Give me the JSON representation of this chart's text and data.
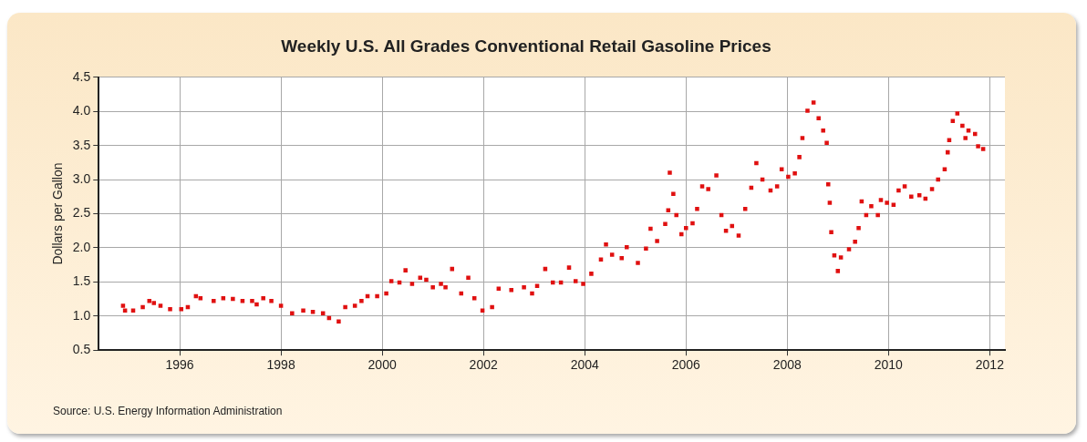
{
  "chart_data": {
    "type": "scatter",
    "title": "Weekly U.S. All Grades Conventional Retail Gasoline Prices",
    "ylabel": "Dollars per Gallon",
    "annotations": [
      "Source: U.S. Energy Information Administration"
    ],
    "series": [
      {
        "color": "#e01010",
        "x": [
          1994.88,
          1994.92,
          1995.08,
          1995.27,
          1995.4,
          1995.49,
          1995.62,
          1995.81,
          1996.03,
          1996.16,
          1996.32,
          1996.41,
          1996.67,
          1996.86,
          1997.05,
          1997.24,
          1997.43,
          1997.52,
          1997.65,
          1997.81,
          1998.0,
          1998.22,
          1998.44,
          1998.63,
          1998.83,
          1998.95,
          1999.14,
          1999.27,
          1999.46,
          1999.59,
          1999.71,
          1999.9,
          2000.08,
          2000.18,
          2000.34,
          2000.46,
          2000.59,
          2000.75,
          2000.87,
          2001.0,
          2001.16,
          2001.25,
          2001.38,
          2001.56,
          2001.7,
          2001.82,
          2001.98,
          2002.17,
          2002.3,
          2002.55,
          2002.8,
          2002.96,
          2003.06,
          2003.22,
          2003.37,
          2003.53,
          2003.69,
          2003.82,
          2003.97,
          2004.13,
          2004.32,
          2004.42,
          2004.54,
          2004.73,
          2004.83,
          2005.05,
          2005.21,
          2005.3,
          2005.43,
          2005.59,
          2005.65,
          2005.68,
          2005.75,
          2005.81,
          2005.91,
          2006.0,
          2006.13,
          2006.22,
          2006.32,
          2006.44,
          2006.6,
          2006.7,
          2006.79,
          2006.91,
          2007.04,
          2007.17,
          2007.29,
          2007.39,
          2007.51,
          2007.67,
          2007.8,
          2007.89,
          2008.02,
          2008.15,
          2008.24,
          2008.3,
          2008.4,
          2008.52,
          2008.62,
          2008.71,
          2008.78,
          2008.81,
          2008.84,
          2008.87,
          2008.93,
          2009.0,
          2009.06,
          2009.22,
          2009.34,
          2009.41,
          2009.47,
          2009.56,
          2009.66,
          2009.79,
          2009.85,
          2009.97,
          2010.1,
          2010.2,
          2010.32,
          2010.45,
          2010.61,
          2010.73,
          2010.86,
          2010.98,
          2011.11,
          2011.17,
          2011.2,
          2011.27,
          2011.36,
          2011.46,
          2011.52,
          2011.58,
          2011.71,
          2011.77,
          2011.87
        ],
        "values": [
          1.15,
          1.08,
          1.08,
          1.13,
          1.22,
          1.19,
          1.15,
          1.1,
          1.1,
          1.13,
          1.29,
          1.26,
          1.22,
          1.26,
          1.25,
          1.22,
          1.22,
          1.17,
          1.26,
          1.22,
          1.15,
          1.04,
          1.08,
          1.06,
          1.04,
          0.97,
          0.92,
          1.13,
          1.15,
          1.22,
          1.29,
          1.29,
          1.33,
          1.51,
          1.49,
          1.67,
          1.47,
          1.56,
          1.53,
          1.42,
          1.47,
          1.42,
          1.69,
          1.33,
          1.56,
          1.26,
          1.08,
          1.13,
          1.4,
          1.38,
          1.42,
          1.33,
          1.44,
          1.69,
          1.49,
          1.49,
          1.71,
          1.51,
          1.47,
          1.62,
          1.83,
          2.05,
          1.9,
          1.85,
          2.01,
          1.78,
          1.99,
          2.28,
          2.1,
          2.35,
          2.55,
          3.1,
          2.79,
          2.48,
          2.2,
          2.29,
          2.36,
          2.57,
          2.9,
          2.86,
          3.06,
          2.48,
          2.25,
          2.32,
          2.18,
          2.57,
          2.88,
          3.24,
          3.0,
          2.84,
          2.9,
          3.15,
          3.04,
          3.09,
          3.33,
          3.61,
          4.01,
          4.13,
          3.9,
          3.72,
          3.54,
          2.93,
          2.66,
          2.23,
          1.89,
          1.66,
          1.86,
          1.98,
          2.09,
          2.29,
          2.68,
          2.48,
          2.61,
          2.48,
          2.7,
          2.66,
          2.63,
          2.84,
          2.9,
          2.75,
          2.77,
          2.72,
          2.86,
          3.0,
          3.15,
          3.4,
          3.58,
          3.86,
          3.97,
          3.79,
          3.61,
          3.72,
          3.67,
          3.49,
          3.45
        ]
      }
    ],
    "xlim": [
      1994.4,
      2012.3
    ],
    "xticks": [
      1996,
      1998,
      2000,
      2002,
      2004,
      2006,
      2008,
      2010,
      2012
    ],
    "ylim": [
      0.5,
      4.5
    ],
    "yticks": [
      {
        "value": 0.5,
        "label": "0.5"
      },
      {
        "value": 1,
        "label": "1.0"
      },
      {
        "value": 1.5,
        "label": "1.5"
      },
      {
        "value": 2,
        "label": "2.0"
      },
      {
        "value": 2.5,
        "label": "2.5"
      },
      {
        "value": 3,
        "label": "3.0"
      },
      {
        "value": 3.5,
        "label": "3.5"
      },
      {
        "value": 4,
        "label": "4.0"
      },
      {
        "value": 4.5,
        "label": "4.5"
      }
    ],
    "grid": true,
    "marker": "square"
  }
}
